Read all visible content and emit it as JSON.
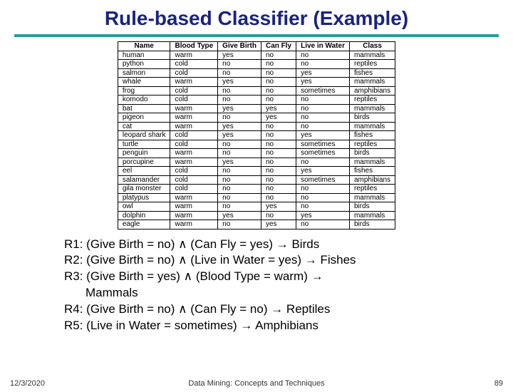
{
  "title": "Rule-based Classifier (Example)",
  "table": {
    "columns": [
      "Name",
      "Blood Type",
      "Give Birth",
      "Can Fly",
      "Live in Water",
      "Class"
    ],
    "rows": [
      [
        "human",
        "warm",
        "yes",
        "no",
        "no",
        "mammals"
      ],
      [
        "python",
        "cold",
        "no",
        "no",
        "no",
        "reptiles"
      ],
      [
        "salmon",
        "cold",
        "no",
        "no",
        "yes",
        "fishes"
      ],
      [
        "whale",
        "warm",
        "yes",
        "no",
        "yes",
        "mammals"
      ],
      [
        "frog",
        "cold",
        "no",
        "no",
        "sometimes",
        "amphibians"
      ],
      [
        "komodo",
        "cold",
        "no",
        "no",
        "no",
        "reptiles"
      ],
      [
        "bat",
        "warm",
        "yes",
        "yes",
        "no",
        "mammals"
      ],
      [
        "pigeon",
        "warm",
        "no",
        "yes",
        "no",
        "birds"
      ],
      [
        "cat",
        "warm",
        "yes",
        "no",
        "no",
        "mammals"
      ],
      [
        "leopard shark",
        "cold",
        "yes",
        "no",
        "yes",
        "fishes"
      ],
      [
        "turtle",
        "cold",
        "no",
        "no",
        "sometimes",
        "reptiles"
      ],
      [
        "penguin",
        "warm",
        "no",
        "no",
        "sometimes",
        "birds"
      ],
      [
        "porcupine",
        "warm",
        "yes",
        "no",
        "no",
        "mammals"
      ],
      [
        "eel",
        "cold",
        "no",
        "no",
        "yes",
        "fishes"
      ],
      [
        "salamander",
        "cold",
        "no",
        "no",
        "sometimes",
        "amphibians"
      ],
      [
        "gila monster",
        "cold",
        "no",
        "no",
        "no",
        "reptiles"
      ],
      [
        "platypus",
        "warm",
        "no",
        "no",
        "no",
        "mammals"
      ],
      [
        "owl",
        "warm",
        "no",
        "yes",
        "no",
        "birds"
      ],
      [
        "dolphin",
        "warm",
        "yes",
        "no",
        "yes",
        "mammals"
      ],
      [
        "eagle",
        "warm",
        "no",
        "yes",
        "no",
        "birds"
      ]
    ],
    "header_fontsize": 10,
    "cell_fontsize": 10,
    "border_color": "#000000",
    "background_color": "#ffffff"
  },
  "rules": {
    "r1": "R1: (Give Birth = no) ∧ (Can Fly = yes) → Birds",
    "r2": "R2: (Give Birth = no) ∧ (Live in Water = yes) → Fishes",
    "r3a": "R3: (Give Birth = yes) ∧ (Blood Type = warm) →",
    "r3b": "Mammals",
    "r4": "R4: (Give Birth = no) ∧ (Can Fly = no) → Reptiles",
    "r5": "R5: (Live in Water = sometimes) → Amphibians"
  },
  "footer": {
    "date": "12/3/2020",
    "center": "Data Mining: Concepts and Techniques",
    "page": "89"
  },
  "colors": {
    "title_color": "#1a237e",
    "divider_color": "#269b98",
    "text_color": "#000000",
    "background": "#ffffff"
  }
}
